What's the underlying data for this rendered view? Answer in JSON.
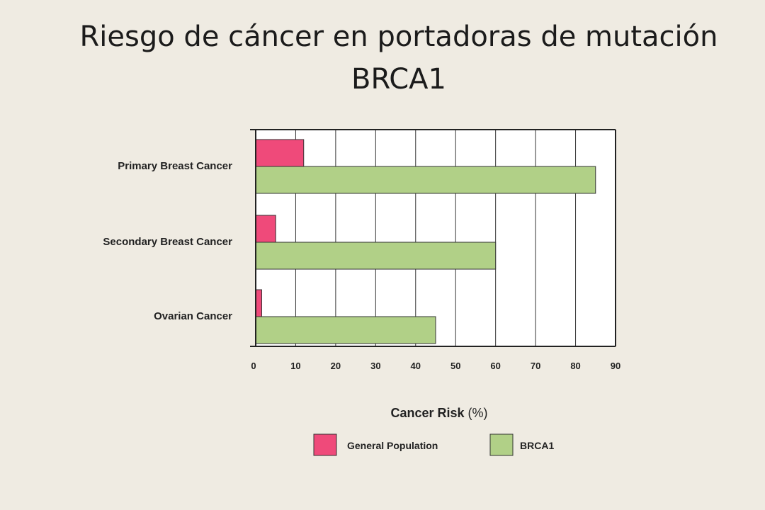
{
  "slide": {
    "title_line1": "Riesgo de cáncer en portadoras de mutación",
    "title_line2": "BRCA1"
  },
  "chart_data": {
    "type": "bar",
    "orientation": "horizontal",
    "categories": [
      "Primary Breast Cancer",
      "Secondary Breast Cancer",
      "Ovarian Cancer"
    ],
    "series": [
      {
        "name": "General Population",
        "color": "#ef4a7a",
        "values": [
          12,
          5,
          1.5
        ]
      },
      {
        "name": "BRCA1",
        "color": "#b1d087",
        "values": [
          85,
          60,
          45
        ]
      }
    ],
    "xlabel": "Cancer Risk",
    "xlabel_unit": "(%)",
    "xlim": [
      0,
      90
    ],
    "xticks": [
      0,
      10,
      20,
      30,
      40,
      50,
      60,
      70,
      80,
      90
    ],
    "grid": true,
    "legend_position": "bottom"
  }
}
